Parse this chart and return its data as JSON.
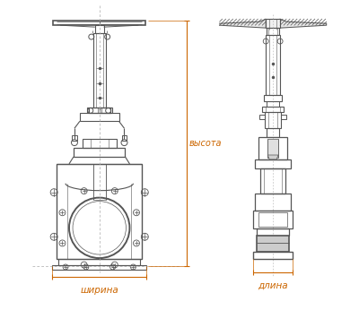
{
  "bg_color": "#ffffff",
  "lc": "#555555",
  "lc_dark": "#333333",
  "dc": "#cc6600",
  "label_shirina": "ширина",
  "label_dlina": "длина",
  "label_vysota": "высота",
  "fig_width": 4.0,
  "fig_height": 3.46,
  "dpi": 100
}
